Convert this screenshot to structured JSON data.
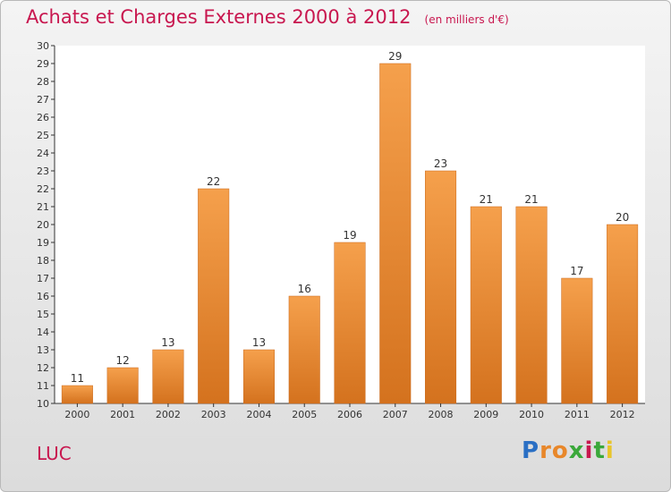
{
  "header": {
    "title": "Achats et Charges Externes 2000 à 2012",
    "subtitle": "(en milliers d'€)"
  },
  "location": "LUC",
  "brand": {
    "letters": [
      "P",
      "r",
      "o",
      "x",
      "i",
      "t",
      "i"
    ],
    "colors": [
      "#2a6fc4",
      "#e8872a",
      "#e8872a",
      "#3aa83a",
      "#c8174f",
      "#3aa83a",
      "#e8c52a"
    ]
  },
  "colors": {
    "bar_light": "#f5a04c",
    "bar_dark": "#d4721e",
    "title": "#c8174f"
  },
  "chart_data": {
    "type": "bar",
    "title": "Achats et Charges Externes 2000 à 2012",
    "categories": [
      "2000",
      "2001",
      "2002",
      "2003",
      "2004",
      "2005",
      "2006",
      "2007",
      "2008",
      "2009",
      "2010",
      "2011",
      "2012"
    ],
    "values": [
      11,
      12,
      13,
      22,
      13,
      16,
      19,
      29,
      23,
      21,
      21,
      17,
      20
    ],
    "ylim": [
      10,
      30
    ],
    "yticks": [
      10,
      11,
      12,
      13,
      14,
      15,
      16,
      17,
      18,
      19,
      20,
      21,
      22,
      23,
      24,
      25,
      26,
      27,
      28,
      29,
      30
    ],
    "grid": false,
    "xlabel": "",
    "ylabel": ""
  }
}
